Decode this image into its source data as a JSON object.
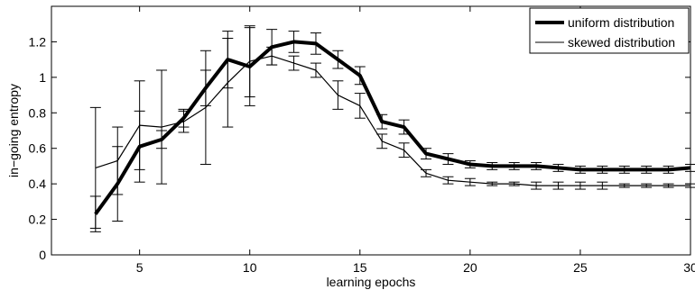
{
  "chart_data": {
    "type": "line",
    "title": "",
    "xlabel": "learning epochs",
    "ylabel": "in−going entropy",
    "xlim": [
      1,
      30
    ],
    "ylim": [
      0,
      1.4
    ],
    "xticks": [
      5,
      10,
      15,
      20,
      25,
      30
    ],
    "yticks": [
      0,
      0.2,
      0.4,
      0.6,
      0.8,
      1,
      1.2
    ],
    "xtick_labels": [
      "5",
      "10",
      "15",
      "20",
      "25",
      "30"
    ],
    "ytick_labels": [
      "0",
      "0.2",
      "0.4",
      "0.6",
      "0.8",
      "1",
      "1.2"
    ],
    "grid": false,
    "legend_position": "top-right",
    "x": [
      3,
      4,
      5,
      6,
      7,
      8,
      9,
      10,
      11,
      12,
      13,
      14,
      15,
      16,
      17,
      18,
      19,
      20,
      21,
      22,
      23,
      24,
      25,
      26,
      27,
      28,
      29,
      30
    ],
    "series": [
      {
        "name": "uniform distribution",
        "color": "#000000",
        "style": "thick",
        "values": [
          0.23,
          0.4,
          0.61,
          0.65,
          0.77,
          0.94,
          1.1,
          1.06,
          1.17,
          1.2,
          1.19,
          1.1,
          1.01,
          0.75,
          0.72,
          0.57,
          0.54,
          0.51,
          0.5,
          0.5,
          0.5,
          0.49,
          0.48,
          0.48,
          0.48,
          0.48,
          0.48,
          0.49
        ],
        "error": [
          0.1,
          0.21,
          0.2,
          0.05,
          0.05,
          0.1,
          0.16,
          0.22,
          0.1,
          0.06,
          0.06,
          0.05,
          0.05,
          0.04,
          0.04,
          0.03,
          0.03,
          0.02,
          0.02,
          0.02,
          0.02,
          0.02,
          0.02,
          0.02,
          0.02,
          0.02,
          0.02,
          0.02
        ]
      },
      {
        "name": "skewed distribution",
        "color": "#000000",
        "style": "thin",
        "values": [
          0.49,
          0.53,
          0.73,
          0.72,
          0.75,
          0.83,
          0.97,
          1.09,
          1.12,
          1.08,
          1.04,
          0.9,
          0.84,
          0.64,
          0.59,
          0.46,
          0.42,
          0.41,
          0.4,
          0.4,
          0.39,
          0.39,
          0.39,
          0.39,
          0.39,
          0.39,
          0.39,
          0.39
        ],
        "error": [
          0.34,
          0.19,
          0.25,
          0.32,
          0.06,
          0.32,
          0.25,
          0.2,
          0.05,
          0.04,
          0.04,
          0.08,
          0.07,
          0.04,
          0.04,
          0.02,
          0.02,
          0.02,
          0.01,
          0.01,
          0.02,
          0.02,
          0.02,
          0.02,
          0.01,
          0.01,
          0.01,
          0.01
        ]
      }
    ]
  }
}
